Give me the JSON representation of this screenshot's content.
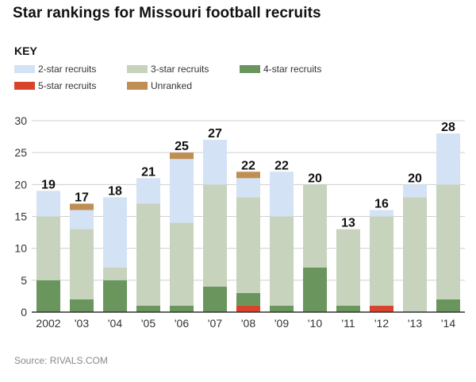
{
  "title": "Star rankings for Missouri football recruits",
  "key": {
    "heading": "KEY",
    "items": [
      {
        "label": "2-star recruits",
        "color": "#d3e2f4"
      },
      {
        "label": "3-star recruits",
        "color": "#c7d3bd"
      },
      {
        "label": "4-star recruits",
        "color": "#6a965e"
      },
      {
        "label": "5-star recruits",
        "color": "#d8432b"
      },
      {
        "label": "Unranked",
        "color": "#bf8e52"
      }
    ]
  },
  "source": "Source: RIVALS.COM",
  "chart_data": {
    "type": "bar",
    "stacked": true,
    "categories": [
      "2002",
      "'03",
      "'04",
      "'05",
      "'06",
      "'07",
      "'08",
      "'09",
      "'10",
      "'11",
      "'12",
      "'13",
      "'14"
    ],
    "series": [
      {
        "name": "5-star recruits",
        "color": "#d8432b",
        "values": [
          0,
          0,
          0,
          0,
          0,
          0,
          1,
          0,
          0,
          0,
          1,
          0,
          0
        ]
      },
      {
        "name": "4-star recruits",
        "color": "#6a965e",
        "values": [
          5,
          2,
          5,
          1,
          1,
          4,
          2,
          1,
          7,
          1,
          0,
          0,
          2
        ]
      },
      {
        "name": "3-star recruits",
        "color": "#c7d3bd",
        "values": [
          10,
          11,
          2,
          16,
          13,
          16,
          15,
          14,
          13,
          12,
          14,
          18,
          18
        ]
      },
      {
        "name": "2-star recruits",
        "color": "#d3e2f4",
        "values": [
          4,
          3,
          11,
          4,
          10,
          7,
          3,
          7,
          0,
          0,
          1,
          2,
          8
        ]
      },
      {
        "name": "Unranked",
        "color": "#bf8e52",
        "values": [
          0,
          1,
          0,
          0,
          1,
          0,
          1,
          0,
          0,
          0,
          0,
          0,
          0
        ]
      }
    ],
    "totals": [
      "19",
      "17",
      "18",
      "21",
      "25",
      "27",
      "22",
      "22",
      "20",
      "13",
      "16",
      "20",
      "28"
    ],
    "ylim": [
      0,
      30
    ],
    "yticks": [
      "0",
      "5",
      "10",
      "15",
      "20",
      "25",
      "30"
    ],
    "grid": true,
    "legend": "top"
  }
}
